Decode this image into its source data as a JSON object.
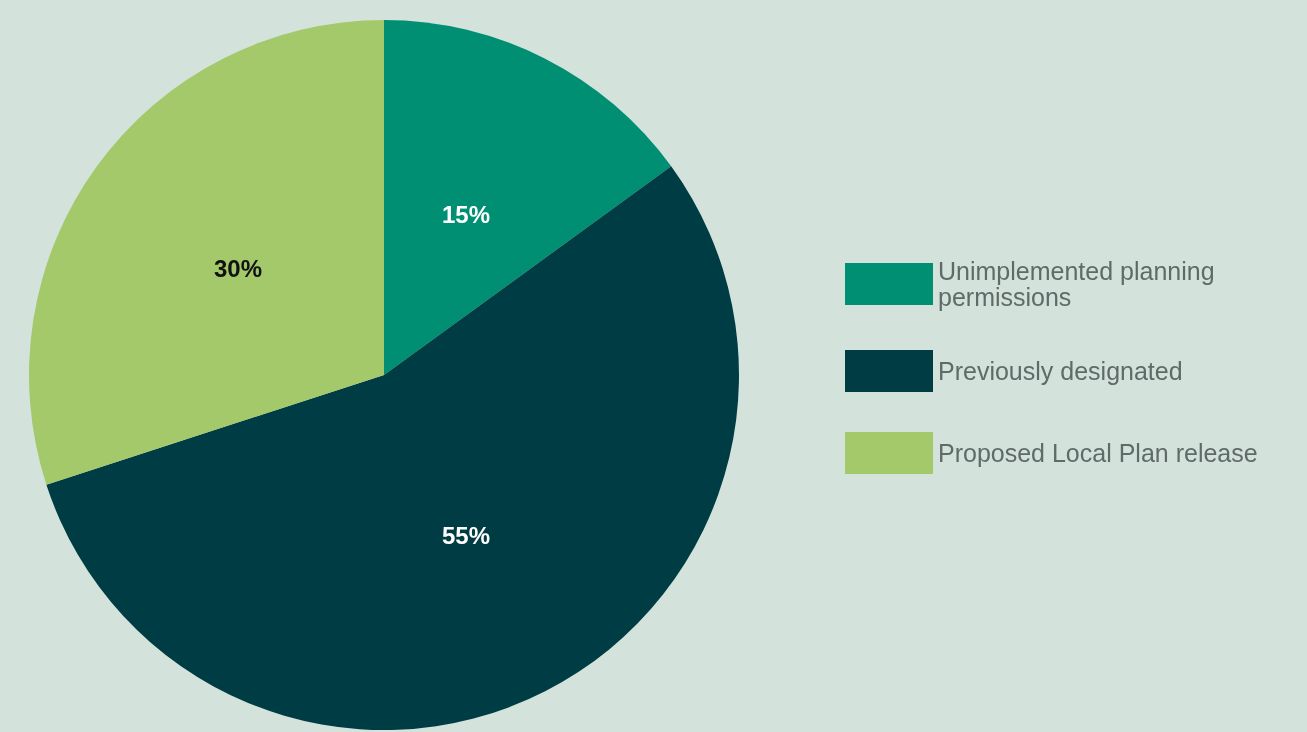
{
  "chart_data": {
    "type": "pie",
    "categories": [
      "Unimplemented planning permissions",
      "Previously designated",
      "Proposed Local Plan release"
    ],
    "values": [
      15,
      55,
      30
    ],
    "colors": [
      "#008f72",
      "#003c44",
      "#a4c96a"
    ],
    "value_labels": [
      "15%",
      "55%",
      "30%"
    ],
    "legend": "right"
  }
}
